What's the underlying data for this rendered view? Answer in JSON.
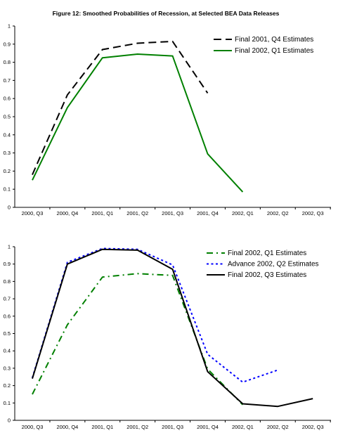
{
  "figure_title": "Figure 12: Smoothed Probabilities of Recession, at Selected BEA Data Releases",
  "chart_data": [
    {
      "type": "line",
      "title": "Figure 12: Smoothed Probabilities of Recession, at Selected BEA Data Releases",
      "categories": [
        "2000, Q3",
        "2000, Q4",
        "2001, Q1",
        "2001, Q2",
        "2001, Q3",
        "2001, Q4",
        "2002, Q1",
        "2002, Q2",
        "2002, Q3"
      ],
      "ylim": [
        0,
        1
      ],
      "yticks": [
        "0",
        "0.1",
        "0.2",
        "0.3",
        "0.4",
        "0.5",
        "0.6",
        "0.7",
        "0.8",
        "0.9",
        "1"
      ],
      "grid": false,
      "legend_position": "top-right",
      "series": [
        {
          "name": "Final 2001, Q4 Estimates",
          "color": "#000000",
          "dash": "long-dash",
          "values": [
            0.18,
            0.62,
            0.87,
            0.905,
            0.915,
            0.63,
            null,
            null,
            null
          ]
        },
        {
          "name": "Final 2002, Q1 Estimates",
          "color": "#008000",
          "dash": "solid",
          "values": [
            0.15,
            0.55,
            0.825,
            0.845,
            0.835,
            0.295,
            0.085,
            null,
            null
          ]
        }
      ]
    },
    {
      "type": "line",
      "title": "",
      "categories": [
        "2000, Q3",
        "2000, Q4",
        "2001, Q1",
        "2001, Q2",
        "2001, Q3",
        "2001, Q4",
        "2002, Q1",
        "2002, Q2",
        "2002, Q3"
      ],
      "ylim": [
        0,
        1
      ],
      "yticks": [
        "0",
        "0.1",
        "0.2",
        "0.3",
        "0.4",
        "0.5",
        "0.6",
        "0.7",
        "0.8",
        "0.9",
        "1"
      ],
      "grid": false,
      "legend_position": "top-right",
      "series": [
        {
          "name": "Final 2002, Q1 Estimates",
          "color": "#008000",
          "dash": "dash-dot",
          "values": [
            0.15,
            0.55,
            0.825,
            0.845,
            0.835,
            0.295,
            0.09,
            null,
            null
          ]
        },
        {
          "name": "Advance 2002, Q2 Estimates",
          "color": "#0000ff",
          "dash": "dotted",
          "values": [
            0.245,
            0.91,
            0.99,
            0.985,
            0.895,
            0.38,
            0.22,
            0.29,
            null
          ]
        },
        {
          "name": "Final 2002, Q3 Estimates",
          "color": "#000000",
          "dash": "solid",
          "values": [
            0.24,
            0.9,
            0.985,
            0.98,
            0.87,
            0.28,
            0.095,
            0.08,
            0.125
          ]
        }
      ]
    }
  ]
}
